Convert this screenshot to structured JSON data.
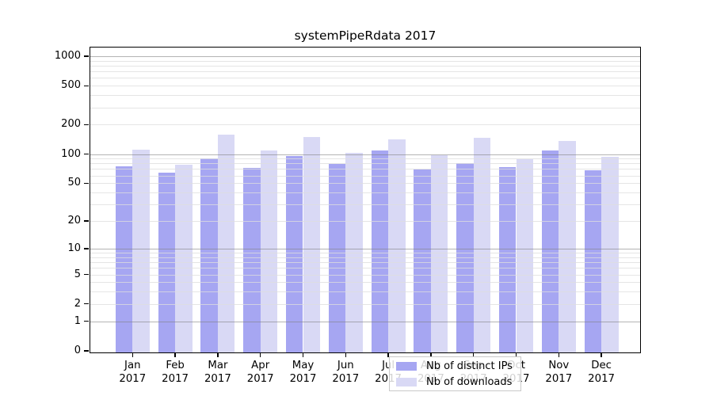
{
  "page": {
    "background": "#ffffff"
  },
  "chart_data": {
    "type": "bar",
    "title": "systemPipeRdata 2017",
    "categories": [
      "Jan",
      "Feb",
      "Mar",
      "Apr",
      "May",
      "Jun",
      "Jul",
      "Aug",
      "Sep",
      "Oct",
      "Nov",
      "Dec"
    ],
    "year_label": "2017",
    "series": [
      {
        "name": "Nb of distinct IPs",
        "color": "#a6a6f2",
        "values": [
          75,
          64,
          91,
          72,
          95,
          79,
          109,
          69,
          81,
          73,
          108,
          68
        ]
      },
      {
        "name": "Nb of downloads",
        "color": "#d9d9f5",
        "values": [
          111,
          78,
          158,
          108,
          151,
          103,
          141,
          98,
          146,
          88,
          135,
          94
        ]
      }
    ],
    "xlabel": "",
    "ylabel": "",
    "yscale": "log10(1+x)",
    "ylim": [
      0,
      1000
    ],
    "yticks": [
      1000,
      500,
      200,
      100,
      50,
      20,
      10,
      5,
      2,
      1,
      0
    ],
    "grid": {
      "on": true,
      "major_lines_at": [
        1000,
        100,
        10,
        1
      ],
      "minor_base": [
        2,
        3,
        4,
        5,
        6,
        7,
        8,
        9
      ],
      "minor_decades": [
        1,
        10,
        100
      ]
    },
    "legend": {
      "position": "bottom-center-inside",
      "items": [
        "Nb of distinct IPs",
        "Nb of downloads"
      ]
    },
    "colors": {
      "axis": "#000000",
      "major_grid": "#7d7d7d",
      "minor_grid": "#dedede",
      "text": "#000000"
    }
  }
}
